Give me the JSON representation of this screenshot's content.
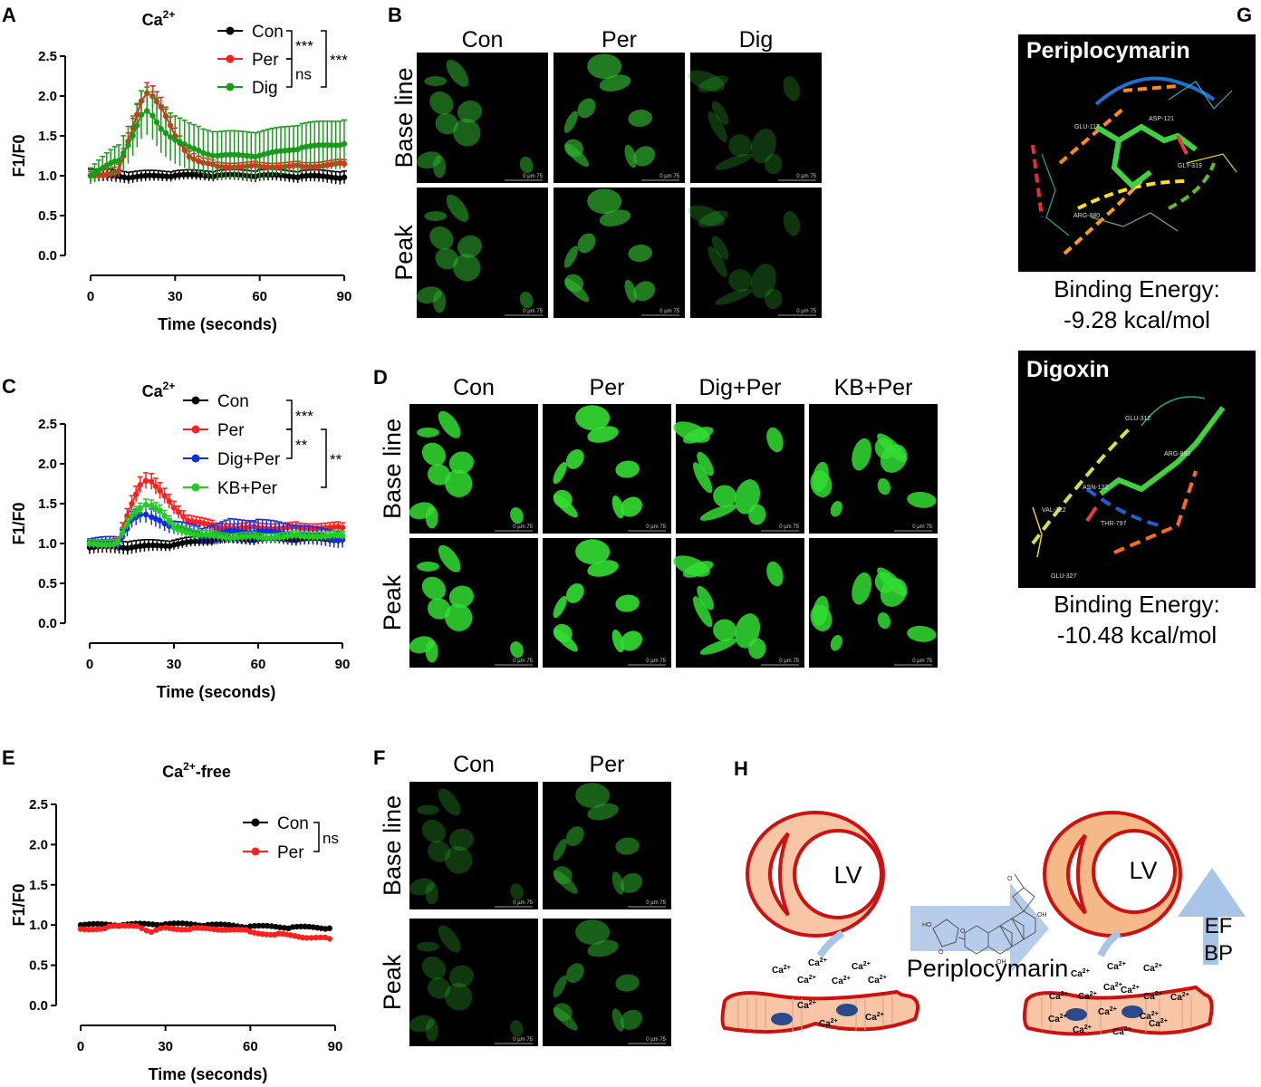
{
  "panels": {
    "A": "A",
    "B": "B",
    "C": "C",
    "D": "D",
    "E": "E",
    "F": "F",
    "G": "G",
    "H": "H"
  },
  "chart_data": [
    {
      "id": "A",
      "type": "line",
      "title": "Ca",
      "title_sup": "2+",
      "xlabel": "Time (seconds)",
      "ylabel": "F1/F0",
      "xlim": [
        0,
        90
      ],
      "ylim": [
        0,
        2.5
      ],
      "xticks": [
        0,
        30,
        60,
        90
      ],
      "yticks": [
        "0.0",
        "0.5",
        "1.0",
        "1.5",
        "2.0",
        "2.5"
      ],
      "series": [
        {
          "name": "Con",
          "color": "#000000",
          "x": [
            0,
            15,
            30,
            45,
            60,
            75,
            90
          ],
          "y": [
            1.0,
            0.98,
            1.0,
            1.0,
            1.0,
            0.99,
            0.98
          ],
          "err": [
            0.08,
            0.07,
            0.06,
            0.06,
            0.07,
            0.07,
            0.08
          ]
        },
        {
          "name": "Per",
          "color": "#ff2020",
          "x": [
            0,
            10,
            15,
            18,
            20,
            22,
            25,
            30,
            35,
            40,
            45,
            60,
            75,
            90
          ],
          "y": [
            1.0,
            1.05,
            1.6,
            1.95,
            2.05,
            2.0,
            1.85,
            1.5,
            1.25,
            1.15,
            1.12,
            1.12,
            1.12,
            1.15
          ],
          "err": [
            0.05,
            0.08,
            0.12,
            0.13,
            0.13,
            0.13,
            0.12,
            0.1,
            0.07,
            0.06,
            0.05,
            0.05,
            0.05,
            0.05
          ]
        },
        {
          "name": "Dig",
          "color": "#1a9a1a",
          "x": [
            0,
            10,
            15,
            18,
            20,
            22,
            25,
            30,
            35,
            40,
            45,
            60,
            75,
            90
          ],
          "y": [
            1.0,
            1.2,
            1.5,
            1.75,
            1.8,
            1.75,
            1.6,
            1.45,
            1.35,
            1.3,
            1.25,
            1.25,
            1.35,
            1.4
          ],
          "err": [
            0.1,
            0.2,
            0.25,
            0.3,
            0.3,
            0.3,
            0.3,
            0.3,
            0.3,
            0.3,
            0.3,
            0.3,
            0.3,
            0.3
          ]
        }
      ],
      "significance": [
        "***",
        "ns",
        "***"
      ]
    },
    {
      "id": "C",
      "type": "line",
      "title": "Ca",
      "title_sup": "2+",
      "xlabel": "Time (seconds)",
      "ylabel": "F1/F0",
      "xlim": [
        0,
        90
      ],
      "ylim": [
        0,
        2.5
      ],
      "xticks": [
        0,
        30,
        60,
        90
      ],
      "yticks": [
        "0.0",
        "0.5",
        "1.0",
        "1.5",
        "2.0",
        "2.5"
      ],
      "series": [
        {
          "name": "Con",
          "color": "#000000",
          "x": [
            0,
            15,
            30,
            45,
            60,
            75,
            90
          ],
          "y": [
            0.95,
            0.95,
            0.98,
            1.05,
            1.05,
            1.05,
            1.05
          ],
          "err": [
            0.08,
            0.08,
            0.06,
            0.06,
            0.06,
            0.06,
            0.06
          ]
        },
        {
          "name": "Per",
          "color": "#ff2020",
          "x": [
            0,
            10,
            15,
            18,
            20,
            22,
            25,
            30,
            35,
            45,
            60,
            75,
            90
          ],
          "y": [
            1.0,
            1.0,
            1.5,
            1.75,
            1.8,
            1.78,
            1.65,
            1.45,
            1.3,
            1.2,
            1.2,
            1.2,
            1.2
          ],
          "err": [
            0.05,
            0.07,
            0.1,
            0.1,
            0.1,
            0.1,
            0.1,
            0.08,
            0.07,
            0.06,
            0.06,
            0.06,
            0.06
          ]
        },
        {
          "name": "Dig+Per",
          "color": "#1030e0",
          "x": [
            0,
            10,
            15,
            18,
            20,
            22,
            25,
            30,
            40,
            50,
            60,
            75,
            90
          ],
          "y": [
            1.0,
            1.0,
            1.3,
            1.35,
            1.35,
            1.33,
            1.3,
            1.2,
            1.1,
            1.15,
            1.15,
            1.1,
            1.05
          ],
          "err": [
            0.06,
            0.08,
            0.1,
            0.1,
            0.1,
            0.1,
            0.1,
            0.08,
            0.1,
            0.15,
            0.15,
            0.12,
            0.1
          ]
        },
        {
          "name": "KB+Per",
          "color": "#22cc22",
          "x": [
            0,
            10,
            15,
            18,
            20,
            22,
            25,
            30,
            40,
            50,
            60,
            75,
            90
          ],
          "y": [
            1.0,
            1.0,
            1.35,
            1.45,
            1.5,
            1.48,
            1.4,
            1.2,
            1.1,
            1.08,
            1.08,
            1.1,
            1.1
          ],
          "err": [
            0.05,
            0.06,
            0.07,
            0.07,
            0.07,
            0.07,
            0.07,
            0.06,
            0.05,
            0.05,
            0.05,
            0.05,
            0.05
          ]
        }
      ],
      "significance": [
        "***",
        "**",
        "**"
      ]
    },
    {
      "id": "E",
      "type": "line",
      "title": "Ca",
      "title_sup": "2+",
      "title_suffix": "-free",
      "xlabel": "Time (seconds)",
      "ylabel": "F1/F0",
      "xlim": [
        0,
        90
      ],
      "ylim": [
        0,
        2.5
      ],
      "xticks": [
        0,
        30,
        60,
        90
      ],
      "yticks": [
        "0.0",
        "0.5",
        "1.0",
        "1.5",
        "2.0",
        "2.5"
      ],
      "series": [
        {
          "name": "Con",
          "color": "#000000",
          "x": [
            0,
            15,
            30,
            45,
            60,
            75,
            88
          ],
          "y": [
            1.0,
            1.0,
            1.01,
            1.0,
            0.98,
            0.97,
            0.96
          ],
          "err": [
            0,
            0,
            0,
            0,
            0,
            0,
            0
          ]
        },
        {
          "name": "Per",
          "color": "#ff2020",
          "x": [
            0,
            10,
            20,
            25,
            30,
            40,
            50,
            60,
            70,
            80,
            88
          ],
          "y": [
            0.95,
            0.97,
            1.0,
            0.9,
            0.97,
            0.95,
            0.95,
            0.92,
            0.88,
            0.85,
            0.83
          ],
          "err": [
            0,
            0,
            0,
            0,
            0,
            0,
            0,
            0,
            0,
            0,
            0
          ]
        }
      ],
      "significance": [
        "ns"
      ]
    }
  ],
  "panel_B": {
    "columns": [
      "Con",
      "Per",
      "Dig"
    ],
    "rows": [
      "Base line",
      "Peak"
    ],
    "scale": "0    µm   75"
  },
  "panel_D": {
    "columns": [
      "Con",
      "Per",
      "Dig+Per",
      "KB+Per"
    ],
    "rows": [
      "Base line",
      "Peak"
    ],
    "scale": "0    µm   75"
  },
  "panel_F": {
    "columns": [
      "Con",
      "Per"
    ],
    "rows": [
      "Base line",
      "Peak"
    ],
    "scale": "0    µm   75"
  },
  "panel_G": {
    "items": [
      {
        "name": "Periplocymarin",
        "energy_label": "Binding Energy:",
        "energy_value": "-9.28 kcal/mol",
        "residues": [
          "GLU-117",
          "ASP-121",
          "GLY-319",
          "ARG-880"
        ]
      },
      {
        "name": "Digoxin",
        "energy_label": "Binding Energy:",
        "energy_value": "-10.48 kcal/mol",
        "residues": [
          "GLU-312",
          "ARG-880",
          "ASN-122",
          "VAL-322",
          "THR-797",
          "GLU-327"
        ]
      }
    ]
  },
  "panel_H": {
    "lv": "LV",
    "drug": "Periplocymarin",
    "ion": "Ca",
    "ion_sup": "2+",
    "up": [
      "EF",
      "BP"
    ],
    "molecule_atoms": [
      "HO",
      "O",
      "O",
      "O",
      "OH",
      "OH"
    ]
  },
  "colors": {
    "con": "#000000",
    "per": "#ff2020",
    "dig": "#1a9a1a",
    "digper": "#1030e0",
    "kbper": "#22cc22",
    "heart_red": "#cc1111",
    "heart_fill": "#f8c6a6",
    "arrow_blue": "#a8c4e6"
  }
}
